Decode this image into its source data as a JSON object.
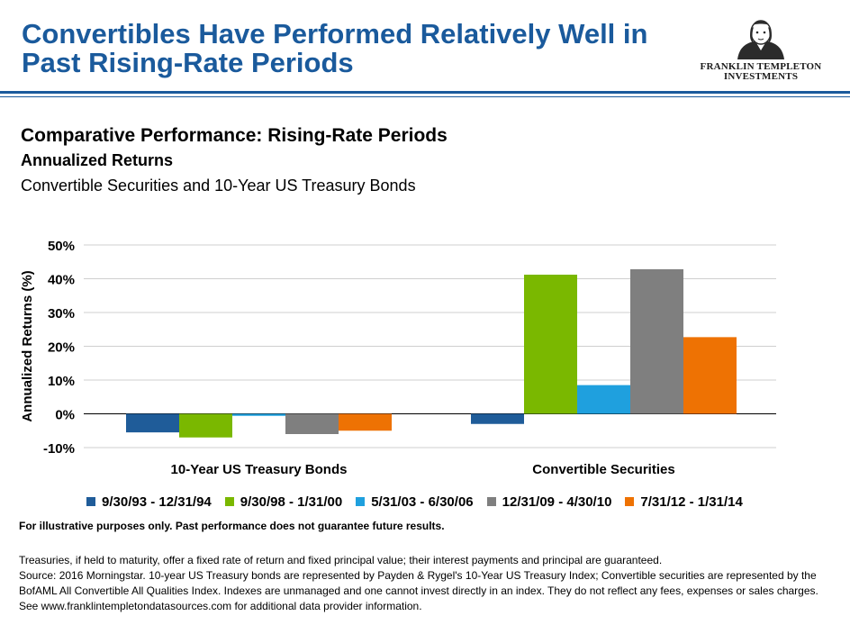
{
  "title": "Convertibles Have Performed Relatively Well in Past Rising-Rate Periods",
  "logo": {
    "line1": "FRANKLIN TEMPLETON",
    "line2": "INVESTMENTS"
  },
  "heading1": "Comparative Performance: Rising-Rate Periods",
  "heading2": "Annualized Returns",
  "heading3": "Convertible Securities and 10-Year US Treasury Bonds",
  "chart_data": {
    "type": "bar",
    "categories": [
      "10-Year US Treasury Bonds",
      "Convertible Securities"
    ],
    "ylabel": "Annualized Returns (%)",
    "xlabel": "",
    "ylim": [
      -10,
      50
    ],
    "yticks": [
      50,
      40,
      30,
      20,
      10,
      0,
      -10
    ],
    "ytick_labels": [
      "50%",
      "40%",
      "30%",
      "20%",
      "10%",
      "0%",
      "-10%"
    ],
    "grid": true,
    "legend_position": "bottom",
    "series": [
      {
        "name": "9/30/93 - 12/31/94",
        "color": "#1f5c99",
        "values": [
          -5.5,
          -3.0
        ]
      },
      {
        "name": "9/30/98 - 1/31/00",
        "color": "#7ab800",
        "values": [
          -7.0,
          41.2
        ]
      },
      {
        "name": "5/31/03 - 6/30/06",
        "color": "#1fa0de",
        "values": [
          -0.6,
          8.5
        ]
      },
      {
        "name": "12/31/09 - 4/30/10",
        "color": "#7f7f7f",
        "values": [
          -6.0,
          42.8
        ]
      },
      {
        "name": "7/31/12 - 1/31/14",
        "color": "#ee7203",
        "values": [
          -5.0,
          22.7
        ]
      }
    ]
  },
  "disclaimer": "For illustrative purposes only. Past performance does not guarantee future results.",
  "footnotes": [
    "Treasuries, if held to maturity, offer a fixed rate of return and fixed principal value; their interest payments and principal are guaranteed.",
    "Source: 2016 Morningstar. 10-year US Treasury bonds are represented by Payden & Rygel's 10-Year US Treasury Index; Convertible securities are represented by the BofAML All Convertible All Qualities Index. Indexes are unmanaged and one cannot invest directly in an index. They do not reflect any fees, expenses or sales charges. See www.franklintempletondatasources.com for additional data provider information."
  ]
}
